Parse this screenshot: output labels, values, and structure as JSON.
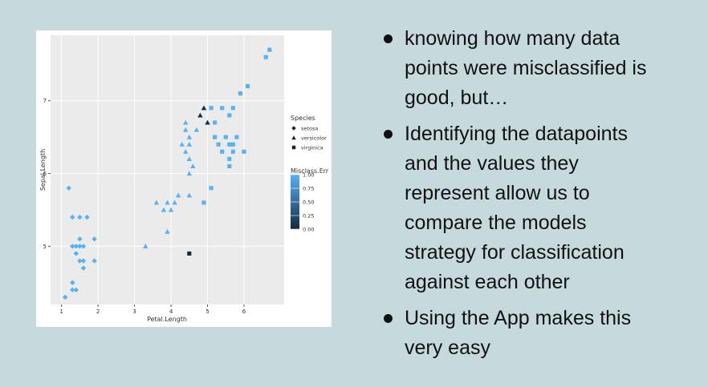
{
  "chart_data": {
    "type": "scatter",
    "x_label": "Petal.Length",
    "y_label": "Sepal.Length",
    "xlim": [
      0.7,
      7.1
    ],
    "xticks": [
      1,
      2,
      3,
      4,
      5,
      6
    ],
    "ylim": [
      4.2,
      7.9
    ],
    "yticks": [
      5,
      6,
      7
    ],
    "grid": true,
    "shape_legend_title": "Species",
    "color_legend_title": "Misclass.Err",
    "color_low": "#132B43",
    "color_high": "#56B1F7",
    "color_lim": [
      0,
      1
    ],
    "color_ticks": [
      {
        "value": 0,
        "label": "0.00"
      },
      {
        "value": 0.25,
        "label": "0.25"
      },
      {
        "value": 0.5,
        "label": "0.50"
      },
      {
        "value": 0.75,
        "label": "0.75"
      },
      {
        "value": 1,
        "label": "1.00"
      }
    ],
    "series": [
      {
        "name": "setosa",
        "shape": "diamond",
        "x": [
          1.2,
          1.3,
          1.5,
          1.7,
          1.3,
          1.4,
          1.5,
          1.6,
          1.9,
          1.4,
          1.5,
          1.6,
          1.9,
          1.6,
          1.3,
          1.3,
          1.4,
          1.1,
          1.5
        ],
        "values": [
          5.8,
          5.4,
          5.4,
          5.4,
          5.0,
          5.0,
          5.0,
          5.0,
          5.1,
          4.9,
          4.8,
          4.8,
          4.8,
          4.7,
          4.5,
          4.4,
          4.4,
          4.3,
          5.1
        ],
        "err": [
          1,
          1,
          1,
          1,
          1,
          1,
          1,
          1,
          1,
          1,
          1,
          1,
          1,
          1,
          1,
          1,
          1,
          1,
          1
        ]
      },
      {
        "name": "versicolor",
        "shape": "triangle",
        "x": [
          3.3,
          3.6,
          3.8,
          3.9,
          4.0,
          4.1,
          3.9,
          4.2,
          4.5,
          4.4,
          4.4,
          4.5,
          4.3,
          4.5,
          4.7,
          4.5,
          4.6,
          4.4,
          4.5,
          4.9,
          4.8,
          5.0
        ],
        "values": [
          5.0,
          5.6,
          5.5,
          5.6,
          5.5,
          5.6,
          5.2,
          5.7,
          5.7,
          6.7,
          6.6,
          6.5,
          6.4,
          6.4,
          6.6,
          6.2,
          6.1,
          6.3,
          6.0,
          6.9,
          6.8,
          6.7
        ],
        "err": [
          1,
          1,
          1,
          1,
          1,
          1,
          1,
          1,
          1,
          1,
          1,
          1,
          1,
          1,
          1,
          1,
          1,
          1,
          1,
          0,
          0,
          0
        ]
      },
      {
        "name": "virginica",
        "shape": "square",
        "x": [
          5.1,
          5.4,
          5.7,
          5.6,
          5.2,
          5.2,
          5.5,
          5.8,
          5.7,
          5.3,
          5.6,
          5.4,
          5.7,
          6.0,
          5.6,
          5.1,
          4.9,
          5.6,
          5.9,
          6.1,
          6.6,
          6.7,
          4.5
        ],
        "values": [
          6.9,
          6.9,
          6.9,
          6.8,
          6.7,
          6.5,
          6.5,
          6.5,
          6.4,
          6.4,
          6.4,
          6.3,
          6.3,
          6.3,
          6.2,
          5.8,
          5.6,
          6.1,
          7.1,
          7.2,
          7.6,
          7.7,
          4.9
        ],
        "err": [
          1,
          1,
          1,
          1,
          1,
          1,
          1,
          1,
          1,
          1,
          1,
          1,
          1,
          1,
          1,
          1,
          1,
          1,
          1,
          1,
          1,
          1,
          0
        ]
      }
    ]
  },
  "bullets": [
    [
      "knowing how many data",
      "points were misclassified is",
      "good, but…"
    ],
    [
      "Identifying the datapoints",
      "and the values they",
      "represent allow us to",
      "compare the models",
      "strategy for classification",
      "against each other"
    ],
    [
      "Using the App makes this",
      "very easy"
    ]
  ]
}
